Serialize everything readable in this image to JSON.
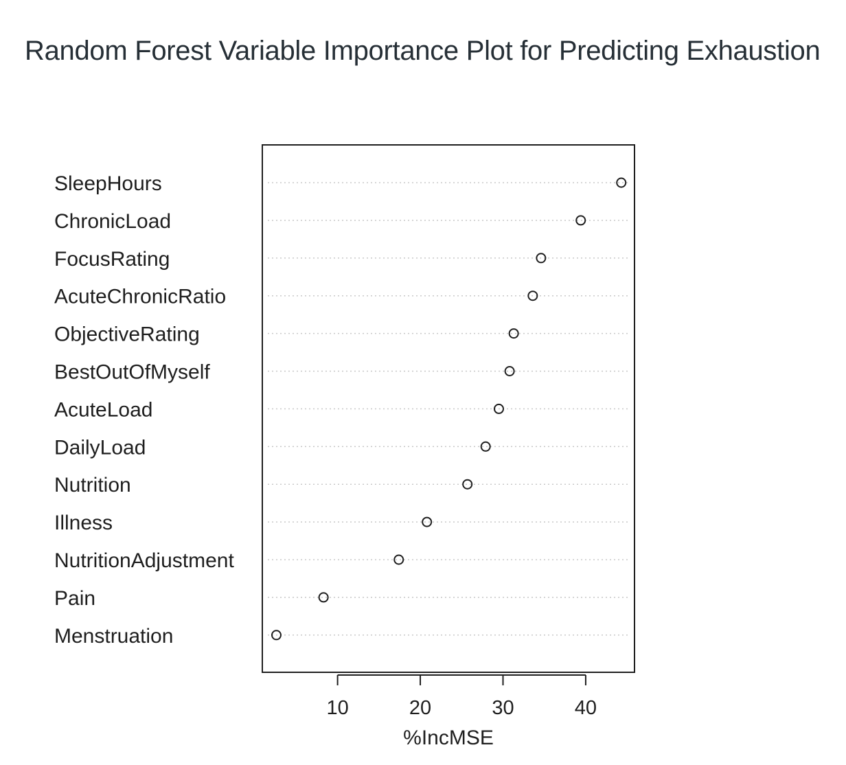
{
  "title": "Random Forest Variable Importance Plot for Predicting Exhaustion",
  "chart_data": {
    "type": "scatter",
    "subtype": "dotchart",
    "title": "Random Forest Variable Importance Plot for Predicting Exhaustion",
    "xlabel": "%IncMSE",
    "ylabel": "",
    "categories": [
      "SleepHours",
      "ChronicLoad",
      "FocusRating",
      "AcuteChronicRatio",
      "ObjectiveRating",
      "BestOutOfMyself",
      "AcuteLoad",
      "DailyLoad",
      "Nutrition",
      "Illness",
      "NutritionAdjustment",
      "Pain",
      "Menstruation"
    ],
    "values": [
      44.3,
      39.4,
      34.6,
      33.6,
      31.3,
      30.8,
      29.5,
      27.9,
      25.7,
      20.8,
      17.4,
      8.3,
      2.6
    ],
    "xticks": [
      10,
      20,
      30,
      40
    ],
    "xlim": [
      0.9,
      45.9
    ],
    "grid": "dotted horizontal lines",
    "colors": {
      "text": "#1e1e1e",
      "title": "#262f36",
      "marker": "#1e1e1e",
      "grid": "#c8c8c8"
    }
  }
}
